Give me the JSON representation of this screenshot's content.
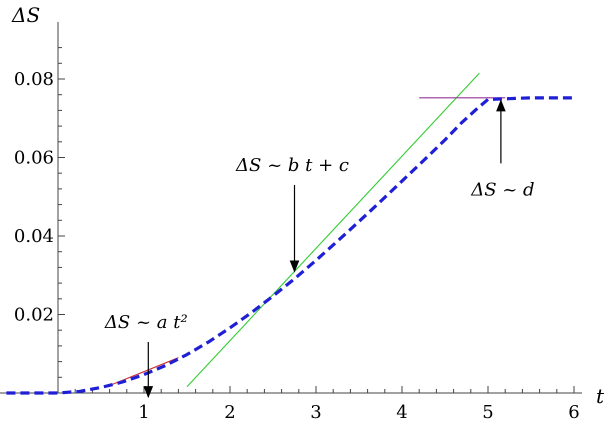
{
  "chart_data": {
    "type": "line",
    "title": "",
    "xlabel": "t",
    "ylabel": "ΔS",
    "xlim": [
      -0.6,
      6.0
    ],
    "ylim": [
      0,
      0.092
    ],
    "x_ticks": [
      1,
      2,
      3,
      4,
      5,
      6
    ],
    "y_ticks": [
      0.02,
      0.04,
      0.06,
      0.08
    ],
    "x_tick_labels": [
      "1",
      "2",
      "3",
      "4",
      "5",
      "6"
    ],
    "y_tick_labels": [
      "0.02",
      "0.04",
      "0.06",
      "0.08"
    ],
    "grid": false,
    "series": [
      {
        "color": "#1f1fd6",
        "style": "dashed",
        "x": [
          -0.6,
          0,
          0.25,
          0.5,
          0.75,
          1.0,
          1.25,
          1.5,
          1.75,
          2.0,
          2.25,
          2.5,
          2.75,
          3.0,
          3.25,
          3.5,
          3.75,
          4.0,
          4.25,
          4.5,
          4.7,
          4.85,
          5.0,
          5.5,
          6.0
        ],
        "y": [
          0,
          0,
          0.0004,
          0.0014,
          0.0028,
          0.0047,
          0.007,
          0.0098,
          0.013,
          0.0166,
          0.0205,
          0.0247,
          0.0291,
          0.0338,
          0.0387,
          0.0437,
          0.0488,
          0.054,
          0.0592,
          0.0645,
          0.069,
          0.072,
          0.0748,
          0.0752,
          0.0752
        ]
      },
      {
        "color": "#33cc33",
        "style": "solid",
        "x": [
          1.5,
          4.9
        ],
        "y": [
          0.0016,
          0.0815
        ]
      },
      {
        "color": "#993399",
        "style": "solid",
        "x": [
          4.2,
          5.2
        ],
        "y": [
          0.0752,
          0.0752
        ]
      },
      {
        "color": "#cc3333",
        "style": "solid",
        "x": [
          0.6,
          1.4
        ],
        "y": [
          0.0019,
          0.009
        ]
      }
    ],
    "annotations": [
      {
        "text": "ΔS ~ a t²",
        "arrow_from": [
          1.05,
          0.013
        ],
        "arrow_to": [
          1.05,
          -0.001
        ]
      },
      {
        "text": "ΔS ~ b t + c",
        "arrow_from": [
          2.75,
          0.053
        ],
        "arrow_to": [
          2.75,
          0.031
        ]
      },
      {
        "text": "ΔS ~ d",
        "arrow_from": [
          5.15,
          0.0585
        ],
        "arrow_to": [
          5.15,
          0.0745
        ]
      }
    ]
  }
}
